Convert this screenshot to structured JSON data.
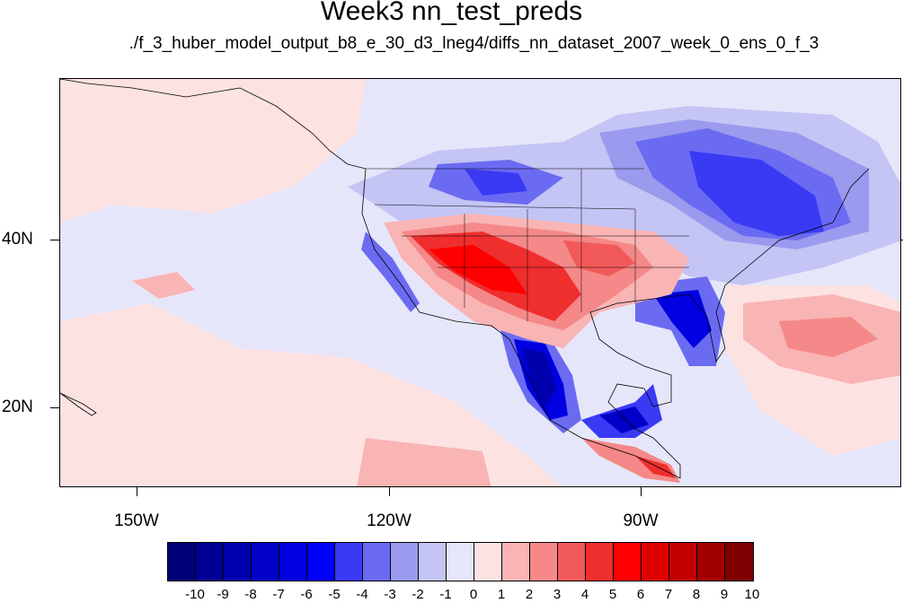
{
  "title": "Week3 nn_test_preds",
  "subtitle": "./f_3_huber_model_output_b8_e_30_d3_lneg4/diffs_nn_dataset_2007_week_0_ens_0_f_3",
  "lat_labels": [
    "40N",
    "20N"
  ],
  "lon_labels": [
    "150W",
    "120W",
    "90W"
  ],
  "colorbar": {
    "labels": [
      "-10",
      "-9",
      "-8",
      "-7",
      "-6",
      "-5",
      "-4",
      "-3",
      "-2",
      "-1",
      "0",
      "1",
      "2",
      "3",
      "4",
      "5",
      "6",
      "7",
      "8",
      "9",
      "10"
    ],
    "colors": [
      "#00007a",
      "#000094",
      "#0000ad",
      "#0000c8",
      "#0000e0",
      "#0000ff",
      "#3a3af5",
      "#6b6bf2",
      "#9a9aee",
      "#c4c4f5",
      "#e6e6fa",
      "#fde2e2",
      "#f9b4b4",
      "#f58888",
      "#f25a5a",
      "#ef2e2e",
      "#ff0000",
      "#df0000",
      "#c20000",
      "#a20000",
      "#7e0000"
    ]
  },
  "map": {
    "background_color": "#e6e6fa",
    "land_outline_color": "#000000"
  }
}
